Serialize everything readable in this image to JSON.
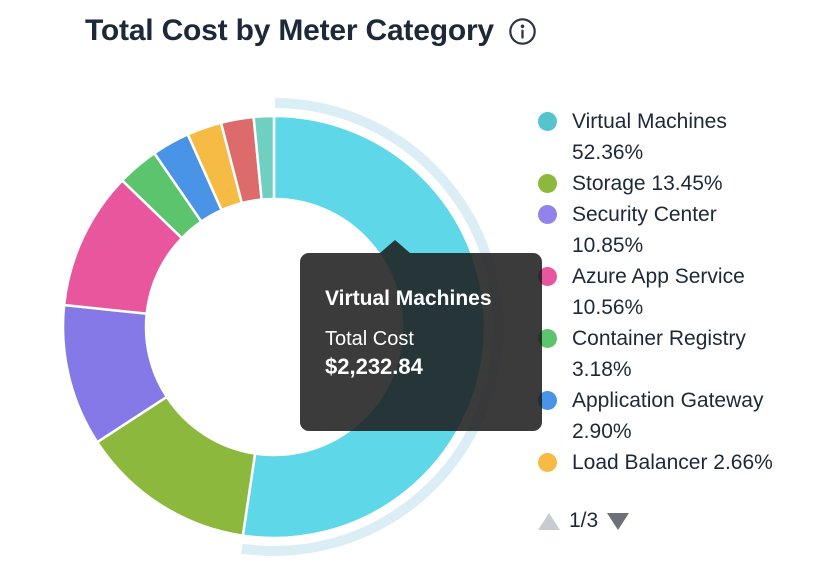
{
  "title": "Total Cost by Meter Category",
  "icons": {
    "info": "info-circle",
    "page_up": "triangle-up",
    "page_down": "triangle-down"
  },
  "chart_data": {
    "type": "pie",
    "subtype": "donut",
    "title": "Total Cost by Meter Category",
    "unit": "%",
    "start_angle_deg": 0,
    "direction": "clockwise",
    "legend_position": "right",
    "hovered_slice": "Virtual Machines",
    "highlight_ring_color": "#DBEDF5",
    "slices": [
      {
        "label": "Virtual Machines",
        "value": 52.36,
        "color": "#5ED8E8",
        "highlighted": true
      },
      {
        "label": "Storage",
        "value": 13.45,
        "color": "#8CB83D"
      },
      {
        "label": "Security Center",
        "value": 10.85,
        "color": "#8479E6"
      },
      {
        "label": "Azure App Service",
        "value": 10.56,
        "color": "#E8569D"
      },
      {
        "label": "Container Registry",
        "value": 3.18,
        "color": "#5DC46E"
      },
      {
        "label": "Application Gateway",
        "value": 2.9,
        "color": "#4A94E8"
      },
      {
        "label": "Load Balancer",
        "value": 2.66,
        "color": "#F5BB45"
      },
      {
        "label": "",
        "value": 2.5,
        "color": "#DD6B6B",
        "estimated": true
      },
      {
        "label": "",
        "value": 1.54,
        "color": "#6FCFC0",
        "estimated": true
      }
    ]
  },
  "legend": {
    "page": "1/3",
    "items": [
      {
        "label": "Virtual Machines 52.36%",
        "color": "#56C4CF"
      },
      {
        "label": "Storage 13.45%",
        "color": "#8CB83D"
      },
      {
        "label": "Security Center 10.85%",
        "color": "#9183EA"
      },
      {
        "label": "Azure App Service 10.56%",
        "color": "#E8569D"
      },
      {
        "label": "Container Registry 3.18%",
        "color": "#5DC46E"
      },
      {
        "label": "Application Gateway 2.90%",
        "color": "#4A94E8"
      },
      {
        "label": "Load Balancer 2.66%",
        "color": "#F5BB45"
      }
    ]
  },
  "tooltip": {
    "title": "Virtual Machines",
    "metric_label": "Total Cost",
    "value": "$2,232.84"
  }
}
